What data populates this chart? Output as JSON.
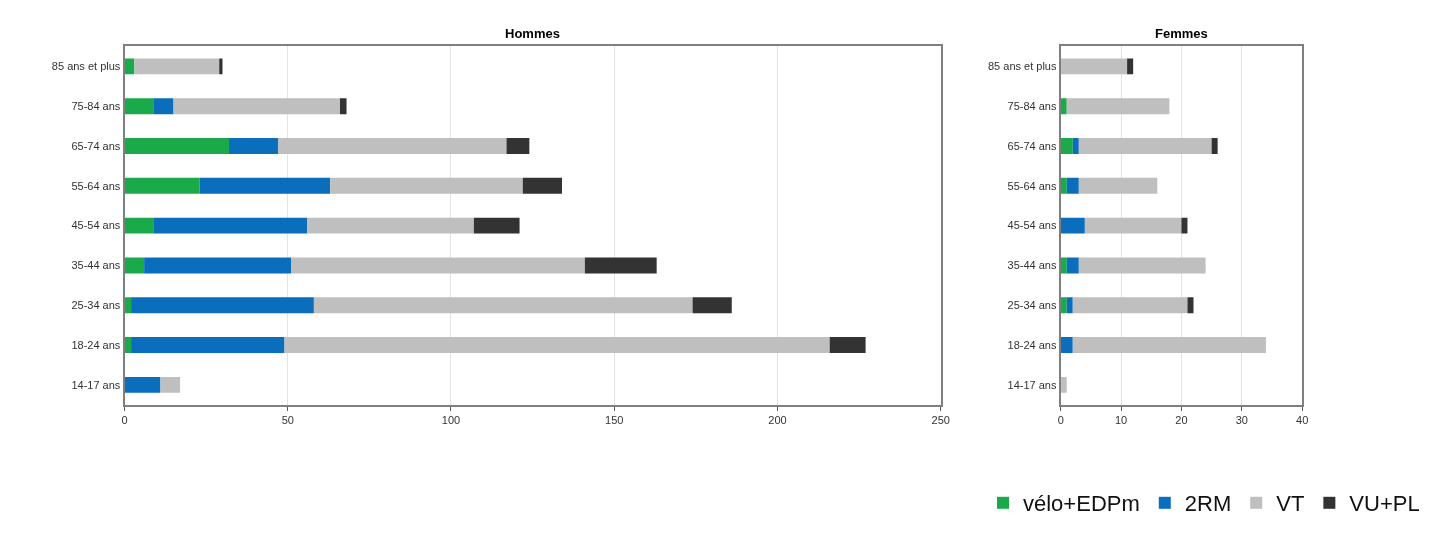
{
  "chart_data": [
    {
      "type": "bar",
      "title": "Hommes",
      "orientation": "horizontal",
      "stacked": true,
      "grid": "x",
      "legend": "bottom right",
      "xlim": [
        0,
        250
      ],
      "xticks": [
        0,
        50,
        100,
        150,
        200,
        250
      ],
      "categories": [
        "85 ans et plus",
        "75-84 ans",
        "65-74 ans",
        "55-64 ans",
        "45-54 ans",
        "35-44 ans",
        "25-34 ans",
        "18-24 ans",
        "14-17 ans"
      ],
      "series": [
        {
          "name": "vélo+EDPm",
          "color": "#1aaa4a",
          "values": [
            3,
            9,
            32,
            23,
            9,
            6,
            2,
            2,
            0
          ]
        },
        {
          "name": "2RM",
          "color": "#0a6ebd",
          "values": [
            0,
            6,
            15,
            40,
            47,
            45,
            56,
            47,
            11
          ]
        },
        {
          "name": "VT",
          "color": "#bfbfbf",
          "values": [
            26,
            51,
            70,
            59,
            51,
            90,
            116,
            167,
            6
          ]
        },
        {
          "name": "VU+PL",
          "color": "#333333",
          "values": [
            1,
            2,
            7,
            12,
            14,
            22,
            12,
            11,
            0
          ]
        }
      ]
    },
    {
      "type": "bar",
      "title": "Femmes",
      "orientation": "horizontal",
      "stacked": true,
      "grid": "x",
      "xlim": [
        0,
        40
      ],
      "xticks": [
        0,
        10,
        20,
        30,
        40
      ],
      "categories": [
        "85 ans et plus",
        "75-84 ans",
        "65-74 ans",
        "55-64 ans",
        "45-54 ans",
        "35-44 ans",
        "25-34 ans",
        "18-24 ans",
        "14-17 ans"
      ],
      "series": [
        {
          "color": "#1aaa4a",
          "values": [
            0,
            1,
            2,
            1,
            0,
            1,
            1,
            0,
            0
          ]
        },
        {
          "color": "#0a6ebd",
          "values": [
            0,
            0,
            1,
            2,
            4,
            2,
            1,
            2,
            0
          ]
        },
        {
          "color": "#bfbfbf",
          "values": [
            11,
            17,
            22,
            13,
            16,
            21,
            19,
            32,
            1
          ]
        },
        {
          "color": "#333333",
          "values": [
            1,
            0,
            1,
            0,
            1,
            0,
            1,
            0,
            0
          ]
        }
      ]
    }
  ]
}
